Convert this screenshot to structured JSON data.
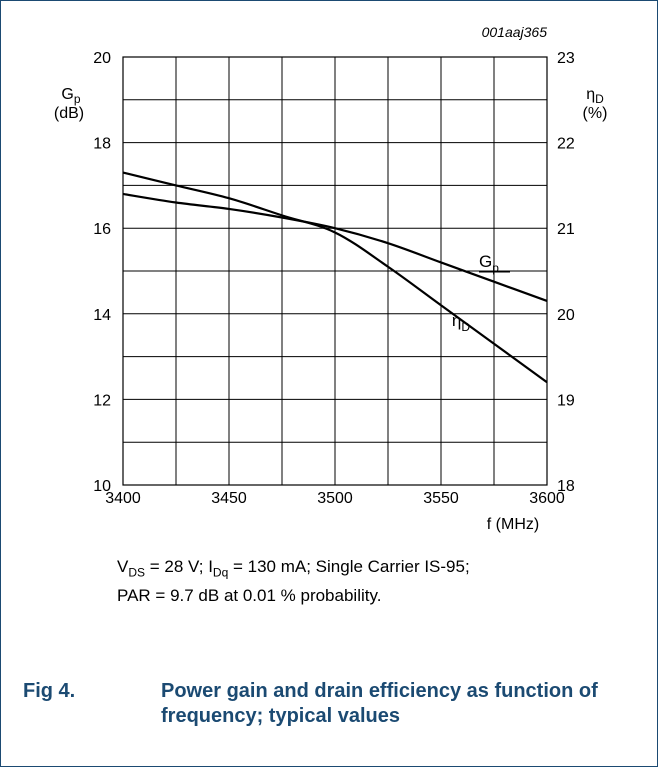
{
  "figure": {
    "number": "Fig 4.",
    "title_line1": "Power gain and drain efficiency as function of",
    "title_line2": "frequency; typical values",
    "code": "001aaj365"
  },
  "conditions": {
    "vds_sym": "V",
    "vds_sub": "DS",
    "vds_val": " = 28 V; ",
    "idq_sym": "I",
    "idq_sub": "Dq",
    "idq_val": " = 130 mA; Single Carrier IS-95;",
    "line2": "PAR = 9.7 dB at 0.01 % probability."
  },
  "chart_data": {
    "type": "line",
    "xlabel": "f (MHz)",
    "ylabel_left": {
      "symbol": "G",
      "sub": "p",
      "unit": "(dB)"
    },
    "ylabel_right": {
      "symbol": "η",
      "sub": "D",
      "unit": "(%)"
    },
    "xlim": [
      3400,
      3600
    ],
    "ylim_left": [
      10,
      20
    ],
    "ylim_right": [
      18,
      23
    ],
    "x_ticks": [
      3400,
      3450,
      3500,
      3550,
      3600
    ],
    "x_tick_labels": [
      "3400",
      "3450",
      "3500",
      "3550",
      "3600"
    ],
    "y_left_ticks": [
      10,
      12,
      14,
      16,
      18,
      20
    ],
    "y_left_tick_labels": [
      "10",
      "12",
      "14",
      "16",
      "18",
      "20"
    ],
    "y_right_ticks": [
      18,
      19,
      20,
      21,
      22,
      23
    ],
    "y_right_tick_labels": [
      "18",
      "19",
      "20",
      "21",
      "22",
      "23"
    ],
    "grid": true,
    "grid_x_step": 25,
    "grid_y_step": 1,
    "series": [
      {
        "name": "Gp",
        "label_sub": "p",
        "label_main": "G",
        "axis": "left",
        "x": [
          3400,
          3425,
          3450,
          3475,
          3500,
          3525,
          3550,
          3575,
          3600
        ],
        "y": [
          16.8,
          16.6,
          16.45,
          16.25,
          16.0,
          15.65,
          15.2,
          14.75,
          14.3
        ]
      },
      {
        "name": "ηD",
        "label_sub": "D",
        "label_main": "η",
        "axis": "right",
        "x": [
          3400,
          3425,
          3450,
          3475,
          3500,
          3525,
          3550,
          3575,
          3600
        ],
        "y": [
          21.65,
          21.5,
          21.35,
          21.15,
          20.95,
          20.55,
          20.1,
          19.65,
          19.2
        ]
      }
    ]
  }
}
